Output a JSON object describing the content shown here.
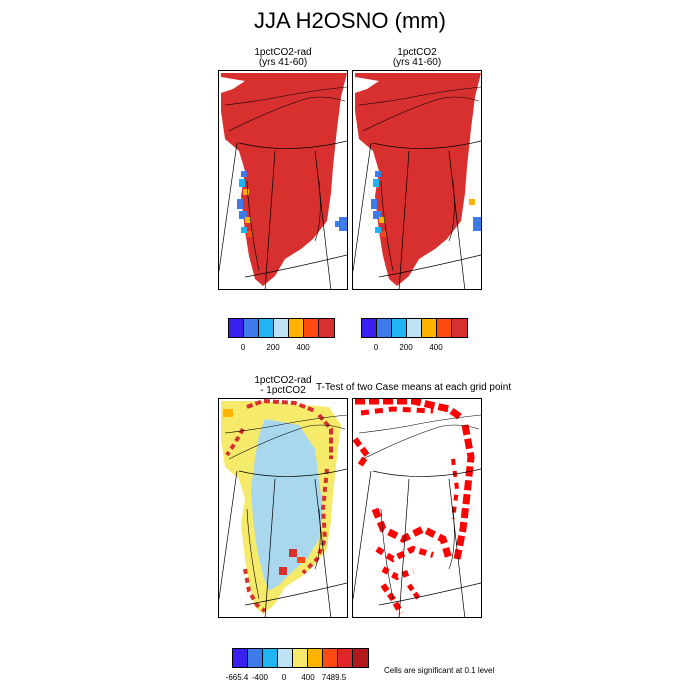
{
  "title": "JJA H2OSNO (mm)",
  "panels": {
    "top_left": {
      "title_line1": "1pctCO2-rad",
      "title_line2": "(yrs 41-60)"
    },
    "top_right": {
      "title_line1": "1pctCO2",
      "title_line2": "(yrs 41-60)"
    },
    "bottom_left": {
      "title_line1": "1pctCO2-rad",
      "title_line2": "- 1pctCO2"
    },
    "bottom_right": {
      "title": "T-Test of two Case means at each grid point"
    }
  },
  "colorbar_top": {
    "colors": [
      "#3a20f0",
      "#3d7be8",
      "#21b4f2",
      "#bde3f5",
      "#ffb300",
      "#ff4a11",
      "#d8302f"
    ],
    "ticks": [
      "0",
      "200",
      "400"
    ]
  },
  "colorbar_bottom": {
    "colors": [
      "#3a20f0",
      "#3d7be8",
      "#21b4f2",
      "#bde3f5",
      "#f6ea6a",
      "#ffb300",
      "#ff4a11",
      "#e02626",
      "#b11a1a"
    ],
    "ticks": [
      "-665.4",
      "-400",
      "0",
      "400",
      "7489.5"
    ]
  },
  "significance_note": "Cells are significant at 0.1 level",
  "map_colors": {
    "snow_red": "#d8302f",
    "sig_red": "#ff0000",
    "yellow": "#f6ea6a",
    "light_blue": "#a9d7ee",
    "blue": "#3d7be8"
  }
}
